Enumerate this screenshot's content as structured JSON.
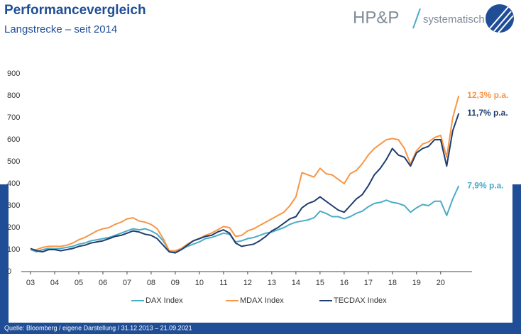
{
  "title": "Performancevergleich",
  "subtitle": "Langstrecke – seit 2014",
  "logo": {
    "brand": "HP&P",
    "tagline": "systematisch"
  },
  "source": "Quelle: Bloomberg / eigene Darstellung / 31.12.2013 – 21.09.2021",
  "chart_data": {
    "type": "line",
    "x": [
      3,
      3.25,
      3.5,
      3.75,
      4,
      4.25,
      4.5,
      4.75,
      5,
      5.25,
      5.5,
      5.75,
      6,
      6.25,
      6.5,
      6.75,
      7,
      7.25,
      7.5,
      7.75,
      8,
      8.25,
      8.5,
      8.75,
      9,
      9.25,
      9.5,
      9.75,
      10,
      10.25,
      10.5,
      10.75,
      11,
      11.25,
      11.5,
      11.75,
      12,
      12.25,
      12.5,
      12.75,
      13,
      13.25,
      13.5,
      13.75,
      14,
      14.25,
      14.5,
      14.75,
      15,
      15.25,
      15.5,
      15.75,
      16,
      16.25,
      16.5,
      16.75,
      17,
      17.25,
      17.5,
      17.75,
      18,
      18.25,
      18.5,
      18.75,
      19,
      19.25,
      19.5,
      19.75,
      20,
      20.25,
      20.5,
      20.75
    ],
    "series": [
      {
        "name": "DAX Index",
        "color": "#4bacc6",
        "values": [
          100,
          90,
          100,
          105,
          104,
          105,
          110,
          115,
          125,
          130,
          140,
          145,
          150,
          155,
          165,
          175,
          185,
          195,
          190,
          195,
          185,
          170,
          140,
          95,
          90,
          100,
          115,
          125,
          135,
          150,
          155,
          165,
          175,
          170,
          135,
          140,
          150,
          155,
          165,
          175,
          180,
          190,
          200,
          215,
          225,
          230,
          235,
          245,
          275,
          265,
          250,
          250,
          240,
          250,
          265,
          275,
          295,
          310,
          315,
          325,
          315,
          310,
          300,
          270,
          290,
          305,
          300,
          320,
          320,
          255,
          330,
          390
        ]
      },
      {
        "name": "MDAX Index",
        "color": "#f79646",
        "values": [
          100,
          100,
          110,
          115,
          115,
          115,
          120,
          130,
          145,
          155,
          170,
          185,
          195,
          200,
          215,
          225,
          240,
          245,
          230,
          225,
          215,
          195,
          150,
          95,
          95,
          105,
          125,
          140,
          150,
          165,
          175,
          190,
          205,
          200,
          160,
          165,
          185,
          195,
          210,
          225,
          240,
          255,
          270,
          300,
          340,
          450,
          440,
          430,
          470,
          445,
          440,
          420,
          400,
          445,
          460,
          490,
          530,
          560,
          580,
          600,
          605,
          600,
          560,
          490,
          550,
          580,
          590,
          610,
          620,
          520,
          700,
          800
        ]
      },
      {
        "name": "TECDAX Index",
        "color": "#1f3d6e",
        "values": [
          105,
          95,
          90,
          100,
          100,
          95,
          100,
          105,
          115,
          120,
          130,
          135,
          140,
          150,
          160,
          165,
          175,
          185,
          180,
          170,
          165,
          150,
          120,
          90,
          85,
          100,
          120,
          140,
          150,
          160,
          165,
          180,
          190,
          175,
          130,
          115,
          120,
          125,
          140,
          160,
          185,
          200,
          220,
          240,
          250,
          290,
          310,
          320,
          340,
          320,
          300,
          280,
          270,
          300,
          330,
          350,
          390,
          440,
          470,
          510,
          560,
          530,
          520,
          480,
          540,
          560,
          570,
          600,
          600,
          480,
          640,
          720
        ]
      }
    ],
    "annotations": [
      "7,9% p.a.",
      "12,3% p.a.",
      "11,7% p.a."
    ],
    "xlim": [
      3,
      21.3
    ],
    "xticks": [
      {
        "value": 3,
        "label": "03"
      },
      {
        "value": 4,
        "label": "04"
      },
      {
        "value": 5,
        "label": "05"
      },
      {
        "value": 6,
        "label": "06"
      },
      {
        "value": 7,
        "label": "07"
      },
      {
        "value": 8,
        "label": "08"
      },
      {
        "value": 9,
        "label": "09"
      },
      10,
      11,
      12,
      13,
      14,
      15,
      16,
      17,
      18,
      19,
      20
    ],
    "ylim": [
      0,
      900
    ],
    "yticks": [
      0,
      100,
      200,
      300,
      400,
      500,
      600,
      700,
      800,
      900
    ],
    "grid": false
  }
}
